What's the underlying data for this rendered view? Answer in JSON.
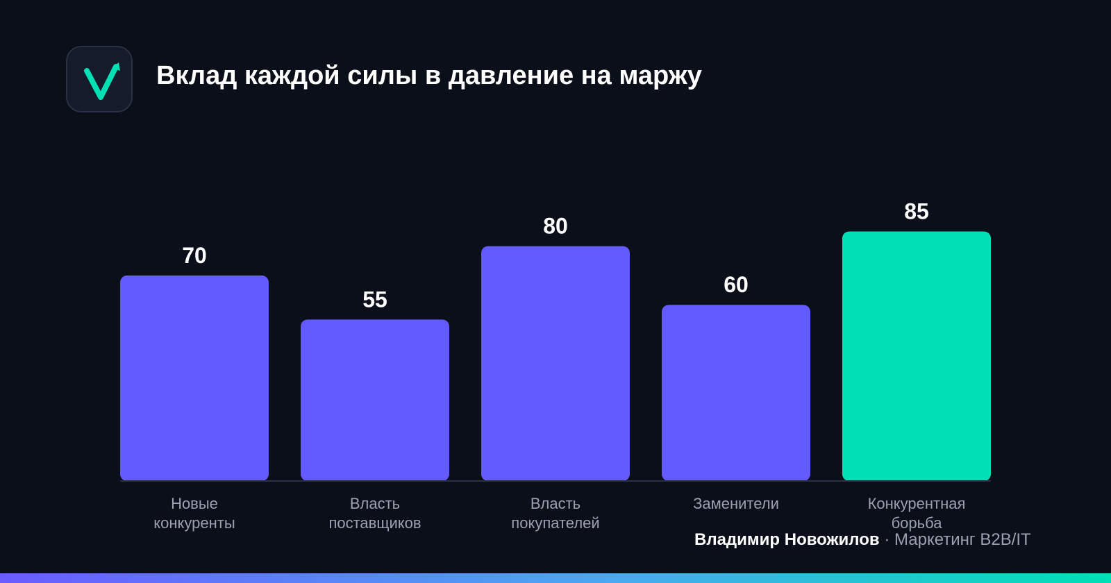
{
  "header": {
    "title": "Вклад каждой силы в давление на маржу",
    "logo_icon": "checkmark-arrow-icon"
  },
  "chart_data": {
    "type": "bar",
    "title": "Вклад каждой силы в давление на маржу",
    "categories": [
      [
        "Новые",
        "конкуренты"
      ],
      [
        "Власть",
        "поставщиков"
      ],
      [
        "Власть",
        "покупателей"
      ],
      [
        "Заменители"
      ],
      [
        "Конкурентная",
        "борьба"
      ]
    ],
    "values": [
      70,
      55,
      80,
      60,
      85
    ],
    "highlight_index": 4,
    "ylim": [
      0,
      100
    ],
    "grid": false,
    "legend": "none",
    "colors": {
      "bar": "#635bff",
      "highlight": "#00e0b5",
      "axis": "#2a3145",
      "value_label": "#ffffff",
      "category_label": "#9aa1b1"
    }
  },
  "footer": {
    "author": "Владимир Новожилов",
    "separator": "·",
    "role": "Маркетинг B2B/IT"
  }
}
